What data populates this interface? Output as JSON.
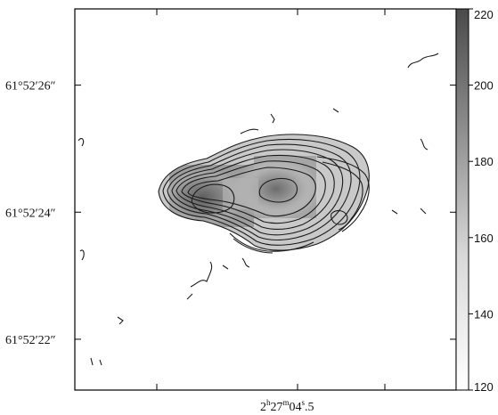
{
  "chart_data": {
    "type": "heatmap",
    "title": "",
    "xlabel": "",
    "ylabel": "",
    "x_tick_labels": [
      {
        "text_prefix": "2",
        "h": "h",
        "min_val": "27",
        "m": "m",
        "sec_val": "04",
        "s": "s",
        "frac": ".5",
        "value": "2h27m04.5s"
      }
    ],
    "y_ticks": [
      {
        "label": "61°52′26″",
        "value_arcsec_offset": 26
      },
      {
        "label": "61°52′24″",
        "value_arcsec_offset": 24
      },
      {
        "label": "61°52′22″",
        "value_arcsec_offset": 22
      }
    ],
    "ylim_arcsec_offset": [
      21.2,
      27.2
    ],
    "colorbar": {
      "min": 120,
      "max": 220,
      "tick_labels": [
        "220",
        "200",
        "180",
        "160",
        "140",
        "120"
      ],
      "ticks": [
        220,
        200,
        180,
        160,
        140,
        120
      ],
      "colormap": "white-to-dark-grey"
    },
    "grid": false,
    "content": "grey-scale intensity map with overlaid contours"
  }
}
